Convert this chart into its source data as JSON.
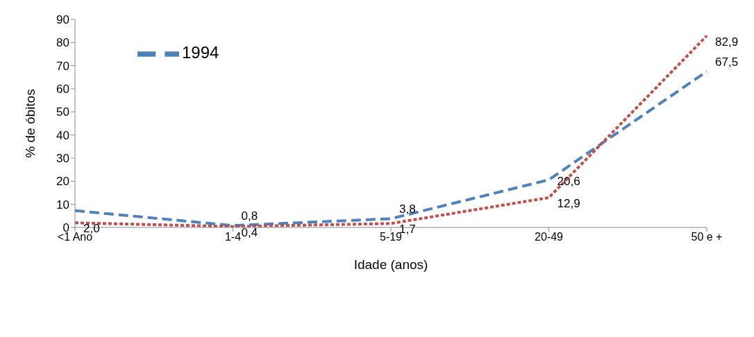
{
  "chart_data": {
    "type": "line",
    "xlabel": "Idade (anos)",
    "ylabel": "% de óbitos",
    "categories": [
      "<1 Ano",
      "1-4",
      "5-19",
      "20-49",
      "50 e +"
    ],
    "series": [
      {
        "name": "1994",
        "color": "#4f81bd",
        "line_style": "dashed",
        "values": [
          7.3,
          0.8,
          3.8,
          20.6,
          67.5
        ],
        "value_labels": [
          null,
          "0,8",
          "3,8",
          "20,6",
          "67,5"
        ]
      },
      {
        "color": "#c0504d",
        "line_style": "dotted",
        "values": [
          2.0,
          0.4,
          1.7,
          12.9,
          82.9
        ],
        "value_labels": [
          "2,0",
          "0,4",
          "1,7",
          "12,9",
          "82,9"
        ]
      }
    ],
    "ylim": [
      0,
      90
    ],
    "yticks": [
      0,
      10,
      20,
      30,
      40,
      50,
      60,
      70,
      80,
      90
    ],
    "grid": false,
    "legend": "top left",
    "marker": "none"
  }
}
